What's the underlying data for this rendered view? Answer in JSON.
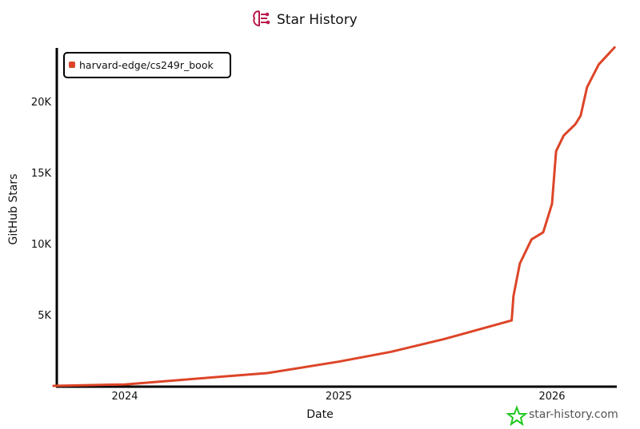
{
  "header": {
    "title": "Star History",
    "logo_icon": "star-history-logo-icon"
  },
  "watermark": {
    "text": "star-history.com",
    "icon": "green-star-icon"
  },
  "colors": {
    "series": "#dd4528",
    "logo": "#b8194a",
    "watermark_star": "#22c922"
  },
  "chart_data": {
    "type": "line",
    "title": "Star History",
    "xlabel": "Date",
    "ylabel": "GitHub Stars",
    "xlim": [
      "2023-09-01",
      "2026-04-20"
    ],
    "ylim": [
      0,
      24000
    ],
    "x_ticks": [
      {
        "label": "2024",
        "date": "2024-01-01"
      },
      {
        "label": "2025",
        "date": "2025-01-01"
      },
      {
        "label": "2026",
        "date": "2026-01-01"
      }
    ],
    "y_ticks": [
      {
        "label": "5K",
        "value": 5000
      },
      {
        "label": "10K",
        "value": 10000
      },
      {
        "label": "15K",
        "value": 15000
      },
      {
        "label": "20K",
        "value": 20000
      }
    ],
    "grid": false,
    "legend_placement": "top-left",
    "series": [
      {
        "name": "harvard-edge/cs249r_book",
        "color": "#dd4528",
        "points": [
          [
            "2023-09-01",
            0
          ],
          [
            "2024-01-01",
            100
          ],
          [
            "2024-06-01",
            600
          ],
          [
            "2024-09-01",
            900
          ],
          [
            "2025-01-01",
            1700
          ],
          [
            "2025-04-01",
            2400
          ],
          [
            "2025-07-01",
            3300
          ],
          [
            "2025-10-24",
            4600
          ],
          [
            "2025-10-27",
            6300
          ],
          [
            "2025-11-07",
            8600
          ],
          [
            "2025-11-27",
            10300
          ],
          [
            "2025-12-17",
            10800
          ],
          [
            "2026-01-01",
            12800
          ],
          [
            "2026-01-08",
            16500
          ],
          [
            "2026-01-21",
            17600
          ],
          [
            "2026-02-10",
            18400
          ],
          [
            "2026-02-19",
            19000
          ],
          [
            "2026-03-02",
            21000
          ],
          [
            "2026-03-22",
            22600
          ],
          [
            "2026-04-18",
            23800
          ]
        ]
      }
    ]
  }
}
